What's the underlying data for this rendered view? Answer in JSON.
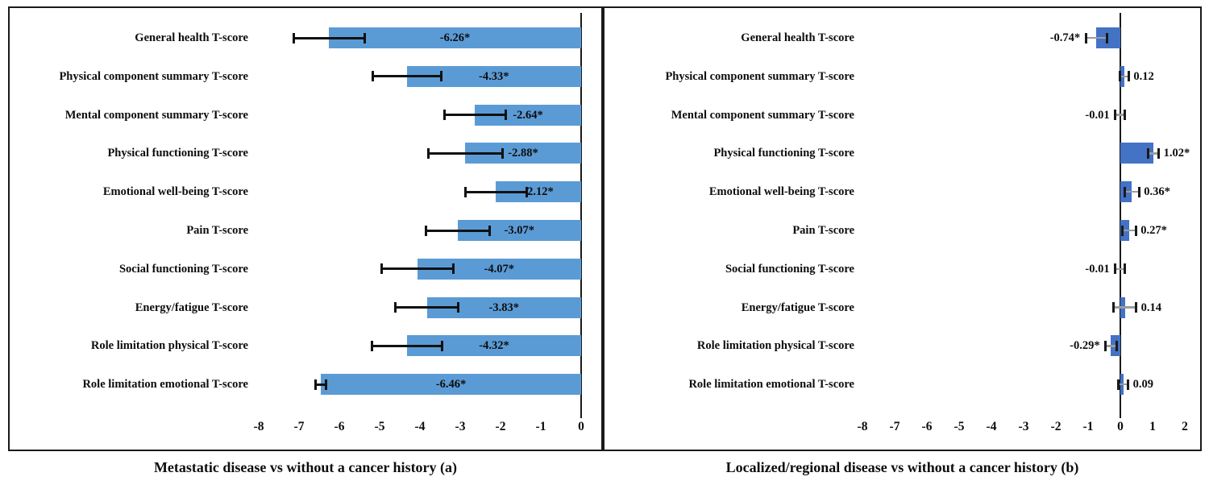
{
  "figure": {
    "background": "#ffffff",
    "border_color": "#1a1a1a"
  },
  "chart_data": [
    {
      "type": "bar",
      "orientation": "horizontal",
      "title": "Metastatic disease vs without a cancer history (a)",
      "bar_color": "#5b9bd5",
      "error_bar_line_color": "#111111",
      "error_bar_cap_color": "#111111",
      "value_label_position": "inside-center",
      "xlim": [
        -8.5,
        0.4
      ],
      "xticks": [
        "-8",
        "-7",
        "-6",
        "-5",
        "-4",
        "-3",
        "-2",
        "-1",
        "0"
      ],
      "grid": false,
      "legend": false,
      "categories": [
        "General health T-score",
        "Physical component summary T-score",
        "Mental component summary T-score",
        "Physical functioning T-score",
        "Emotional well-being T-score",
        "Pain T-score",
        "Social functioning T-score",
        "Energy/fatigue T-score",
        "Role limitation physical T-score",
        "Role limitation emotional T-score"
      ],
      "values": [
        -6.26,
        -4.33,
        -2.64,
        -2.88,
        -2.12,
        -3.07,
        -4.07,
        -3.83,
        -4.32,
        -6.46
      ],
      "data_labels": [
        "-6.26*",
        "-4.33*",
        "-2.64*",
        "-2.88*",
        "-2.12*",
        "-3.07*",
        "-4.07*",
        "-3.83*",
        "-4.32*",
        "-6.46*"
      ],
      "error_half": [
        0.88,
        0.85,
        0.76,
        0.92,
        0.76,
        0.79,
        0.89,
        0.78,
        0.87,
        0.13
      ]
    },
    {
      "type": "bar",
      "orientation": "horizontal",
      "title": "Localized/regional disease vs without a cancer history (b)",
      "bar_color": "#4472c4",
      "error_bar_line_color": "#9c9c9c",
      "error_bar_cap_color": "#1a1a1a",
      "value_label_position": "outside-end",
      "xlim": [
        -8.5,
        2.5
      ],
      "xticks": [
        "-8",
        "-7",
        "-6",
        "-5",
        "-4",
        "-3",
        "-2",
        "-1",
        "0",
        "1",
        "2"
      ],
      "grid": false,
      "legend": false,
      "categories": [
        "General health T-score",
        "Physical component summary T-score",
        "Mental component summary T-score",
        "Physical functioning T-score",
        "Emotional well-being T-score",
        "Pain T-score",
        "Social functioning T-score",
        "Energy/fatigue T-score",
        "Role limitation physical T-score",
        "Role limitation emotional T-score"
      ],
      "values": [
        -0.74,
        0.12,
        -0.01,
        1.02,
        0.36,
        0.27,
        -0.01,
        0.14,
        -0.29,
        0.09
      ],
      "data_labels": [
        "-0.74*",
        "0.12",
        "-0.01",
        "1.02*",
        "0.36*",
        "0.27*",
        "-0.01",
        "0.14",
        "-0.29*",
        "0.09"
      ],
      "error_half": [
        0.33,
        0.14,
        0.15,
        0.17,
        0.22,
        0.21,
        0.15,
        0.35,
        0.17,
        0.15
      ]
    }
  ]
}
